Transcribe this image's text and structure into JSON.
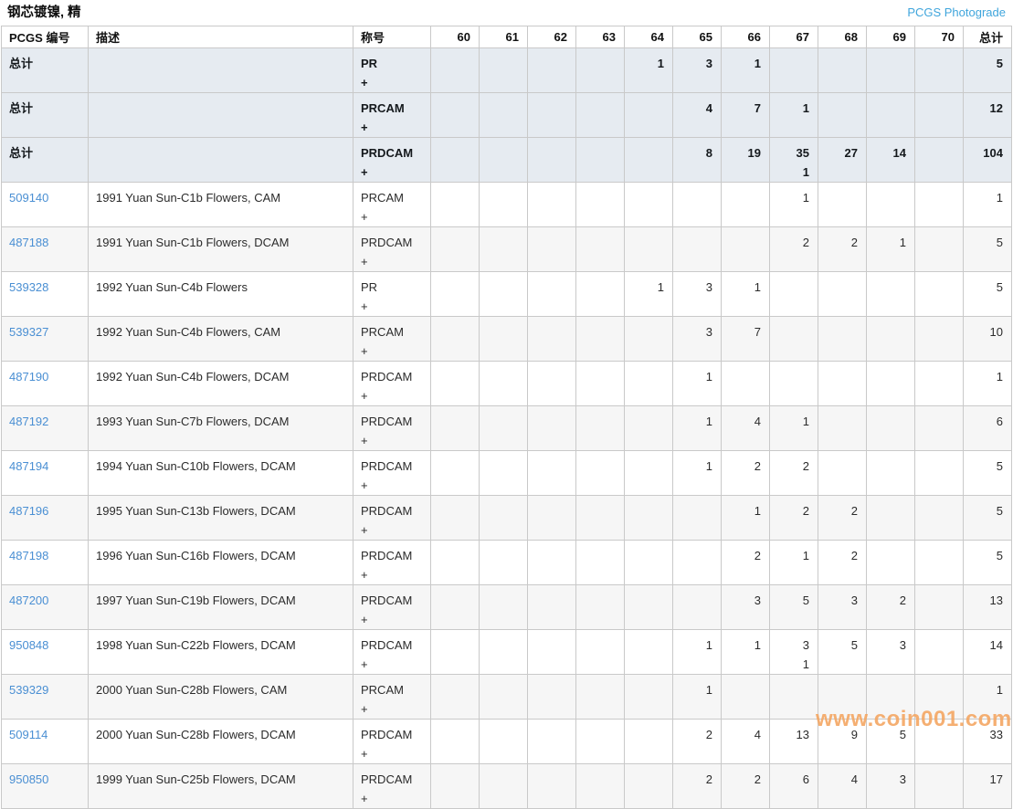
{
  "page": {
    "title": "钢芯镀镍, 精",
    "top_link": "PCGS Photograde"
  },
  "colors": {
    "pcgs_number_link": "#4a8fd3",
    "photograde_link": "#3fa5dc",
    "summary_row_bg": "#e6ebf1",
    "alt_row_bg": "#f6f6f6",
    "watermark_orange": "#f4a45e"
  },
  "watermark": {
    "text": "www.coin001.com"
  },
  "table": {
    "columns": [
      "PCGS 编号",
      "描述",
      "称号",
      "60",
      "61",
      "62",
      "63",
      "64",
      "65",
      "66",
      "67",
      "68",
      "69",
      "70",
      "总计"
    ],
    "grade_keys": [
      "60",
      "61",
      "62",
      "63",
      "64",
      "65",
      "66",
      "67",
      "68",
      "69",
      "70",
      "total"
    ],
    "rows": [
      {
        "id": "总计",
        "summary": true,
        "description": "",
        "designation": "PR",
        "plus": "+",
        "counts": [
          "",
          "",
          "",
          "",
          "1",
          "3",
          "1",
          "",
          "",
          "",
          "",
          "5"
        ]
      },
      {
        "id": "总计",
        "summary": true,
        "description": "",
        "designation": "PRCAM",
        "plus": "+",
        "counts": [
          "",
          "",
          "",
          "",
          "",
          "4",
          "7",
          "1",
          "",
          "",
          "",
          "12"
        ]
      },
      {
        "id": "总计",
        "summary": true,
        "description": "",
        "designation": "PRDCAM",
        "plus": "+",
        "counts": [
          "",
          "",
          "",
          "",
          "",
          "8",
          "19",
          "35\n1",
          "27",
          "14",
          "",
          "104"
        ]
      },
      {
        "id": "509140",
        "summary": false,
        "description": "1991 Yuan Sun-C1b Flowers, CAM",
        "designation": "PRCAM",
        "plus": "+",
        "counts": [
          "",
          "",
          "",
          "",
          "",
          "",
          "",
          "1",
          "",
          "",
          "",
          "1"
        ]
      },
      {
        "id": "487188",
        "summary": false,
        "description": "1991 Yuan Sun-C1b Flowers, DCAM",
        "designation": "PRDCAM",
        "plus": "+",
        "counts": [
          "",
          "",
          "",
          "",
          "",
          "",
          "",
          "2",
          "2",
          "1",
          "",
          "5"
        ]
      },
      {
        "id": "539328",
        "summary": false,
        "description": "1992 Yuan Sun-C4b Flowers",
        "designation": "PR",
        "plus": "+",
        "counts": [
          "",
          "",
          "",
          "",
          "1",
          "3",
          "1",
          "",
          "",
          "",
          "",
          "5"
        ]
      },
      {
        "id": "539327",
        "summary": false,
        "description": "1992 Yuan Sun-C4b Flowers, CAM",
        "designation": "PRCAM",
        "plus": "+",
        "counts": [
          "",
          "",
          "",
          "",
          "",
          "3",
          "7",
          "",
          "",
          "",
          "",
          "10"
        ]
      },
      {
        "id": "487190",
        "summary": false,
        "description": "1992 Yuan Sun-C4b Flowers, DCAM",
        "designation": "PRDCAM",
        "plus": "+",
        "counts": [
          "",
          "",
          "",
          "",
          "",
          "1",
          "",
          "",
          "",
          "",
          "",
          "1"
        ]
      },
      {
        "id": "487192",
        "summary": false,
        "description": "1993 Yuan Sun-C7b Flowers, DCAM",
        "designation": "PRDCAM",
        "plus": "+",
        "counts": [
          "",
          "",
          "",
          "",
          "",
          "1",
          "4",
          "1",
          "",
          "",
          "",
          "6"
        ]
      },
      {
        "id": "487194",
        "summary": false,
        "description": "1994 Yuan Sun-C10b Flowers, DCAM",
        "designation": "PRDCAM",
        "plus": "+",
        "counts": [
          "",
          "",
          "",
          "",
          "",
          "1",
          "2",
          "2",
          "",
          "",
          "",
          "5"
        ]
      },
      {
        "id": "487196",
        "summary": false,
        "description": "1995 Yuan Sun-C13b Flowers, DCAM",
        "designation": "PRDCAM",
        "plus": "+",
        "counts": [
          "",
          "",
          "",
          "",
          "",
          "",
          "1",
          "2",
          "2",
          "",
          "",
          "5"
        ]
      },
      {
        "id": "487198",
        "summary": false,
        "description": "1996 Yuan Sun-C16b Flowers, DCAM",
        "designation": "PRDCAM",
        "plus": "+",
        "counts": [
          "",
          "",
          "",
          "",
          "",
          "",
          "2",
          "1",
          "2",
          "",
          "",
          "5"
        ]
      },
      {
        "id": "487200",
        "summary": false,
        "description": "1997 Yuan Sun-C19b Flowers, DCAM",
        "designation": "PRDCAM",
        "plus": "+",
        "counts": [
          "",
          "",
          "",
          "",
          "",
          "",
          "3",
          "5",
          "3",
          "2",
          "",
          "13"
        ]
      },
      {
        "id": "950848",
        "summary": false,
        "description": "1998 Yuan Sun-C22b Flowers, DCAM",
        "designation": "PRDCAM",
        "plus": "+",
        "counts": [
          "",
          "",
          "",
          "",
          "",
          "1",
          "1",
          "3\n1",
          "5",
          "3",
          "",
          "14"
        ]
      },
      {
        "id": "539329",
        "summary": false,
        "description": "2000 Yuan Sun-C28b Flowers, CAM",
        "designation": "PRCAM",
        "plus": "+",
        "counts": [
          "",
          "",
          "",
          "",
          "",
          "1",
          "",
          "",
          "",
          "",
          "",
          "1"
        ]
      },
      {
        "id": "509114",
        "summary": false,
        "description": "2000 Yuan Sun-C28b Flowers, DCAM",
        "designation": "PRDCAM",
        "plus": "+",
        "counts": [
          "",
          "",
          "",
          "",
          "",
          "2",
          "4",
          "13",
          "9",
          "5",
          "",
          "33"
        ]
      },
      {
        "id": "950850",
        "summary": false,
        "description": "1999 Yuan Sun-C25b Flowers, DCAM",
        "designation": "PRDCAM",
        "plus": "+",
        "counts": [
          "",
          "",
          "",
          "",
          "",
          "2",
          "2",
          "6",
          "4",
          "3",
          "",
          "17"
        ]
      }
    ]
  }
}
